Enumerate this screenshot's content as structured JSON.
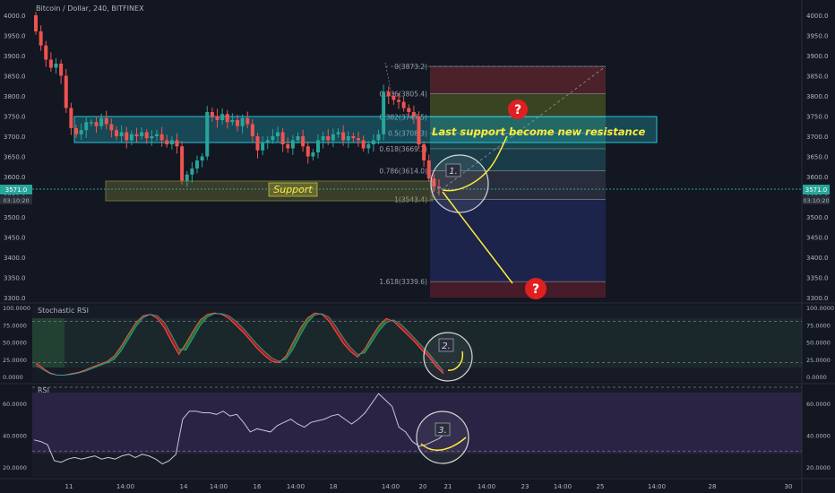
{
  "header": {
    "symbol_line": "Bitcoin / Dollar, 240, BITFINEX"
  },
  "price_panel": {
    "price_ticks": [
      "4000.0",
      "3950.0",
      "3900.0",
      "3850.0",
      "3800.0",
      "3750.0",
      "3700.0",
      "3650.0",
      "3600.0",
      "3550.0",
      "3500.0",
      "3450.0",
      "3400.0",
      "3350.0",
      "3300.0"
    ],
    "last_price_label": "3571.0",
    "countdown_label": "03:10:20"
  },
  "fib": {
    "levels": [
      {
        "label": "0(3873.2)",
        "value": 3873.2
      },
      {
        "label": "0.236(3805.4)",
        "value": 3805.4
      },
      {
        "label": "0.382(3747.5)",
        "value": 3747.5
      },
      {
        "label": "0.5(3708.3)",
        "value": 3708.3
      },
      {
        "label": "0.618(3669.1)",
        "value": 3669.1
      },
      {
        "label": "0.786(3614.0)",
        "value": 3614.0
      },
      {
        "label": "1(3543.4)",
        "value": 3543.4
      },
      {
        "label": "1.618(3339.6)",
        "value": 3339.6
      }
    ],
    "colors": [
      "#7a2b2f",
      "#5d6a23",
      "#2f6b4a",
      "#1f6a6a",
      "#1f5b68",
      "#3a4050",
      "#252f6e",
      "#5a2230"
    ]
  },
  "annotations": {
    "resistance_text": "Last support become new resistance",
    "support_text": "Support",
    "markers": [
      "1.",
      "2.",
      "3."
    ],
    "question_glyph": "?"
  },
  "stoch_panel": {
    "title": "Stochastic RSI",
    "ticks": [
      "100.0000",
      "75.0000",
      "50.0000",
      "25.0000",
      "0.0000"
    ]
  },
  "rsi_panel": {
    "title": "RSI",
    "ticks": [
      "60.0000",
      "40.0000",
      "20.0000"
    ]
  },
  "time_axis": {
    "labels": [
      "11",
      "14:00",
      "14",
      "14:00",
      "16",
      "14:00",
      "18",
      "14:00",
      "20",
      "21",
      "14:00",
      "23",
      "14:00",
      "25",
      "14:00",
      "28",
      "30"
    ]
  },
  "colors": {
    "up": "#26a69a",
    "down": "#ef5350",
    "background": "#131722",
    "annotation": "#ffeb3b",
    "zone": "#26c6da"
  },
  "chart_data": [
    {
      "type": "candlestick",
      "title": "Bitcoin / Dollar, 240, BITFINEX",
      "ylim": [
        3290,
        4040
      ],
      "closes": [
        3960,
        3925,
        3890,
        3870,
        3880,
        3850,
        3770,
        3720,
        3705,
        3715,
        3735,
        3735,
        3725,
        3745,
        3730,
        3715,
        3700,
        3710,
        3690,
        3705,
        3700,
        3710,
        3695,
        3700,
        3705,
        3690,
        3680,
        3690,
        3675,
        3590,
        3605,
        3620,
        3640,
        3650,
        3760,
        3750,
        3740,
        3755,
        3735,
        3740,
        3725,
        3745,
        3730,
        3700,
        3665,
        3685,
        3690,
        3700,
        3710,
        3680,
        3670,
        3690,
        3700,
        3675,
        3650,
        3660,
        3690,
        3700,
        3690,
        3705,
        3710,
        3690,
        3700,
        3695,
        3690,
        3670,
        3680,
        3690,
        3705,
        3810,
        3800,
        3790,
        3785,
        3770,
        3760,
        3750,
        3680,
        3640,
        3595,
        3575,
        3571
      ],
      "last_price": 3571.0
    },
    {
      "type": "line",
      "title": "Stochastic RSI",
      "ylim": [
        0,
        100
      ],
      "series": [
        {
          "values": [
            20,
            12,
            5,
            2,
            2,
            4,
            6,
            10,
            14,
            18,
            22,
            30,
            45,
            62,
            78,
            88,
            90,
            84,
            70,
            50,
            32,
            48,
            66,
            82,
            90,
            92,
            90,
            84,
            74,
            64,
            52,
            40,
            30,
            22,
            20,
            30,
            50,
            70,
            85,
            92,
            90,
            80,
            64,
            48,
            36,
            28,
            40,
            58,
            74,
            84,
            80,
            70,
            60,
            50,
            38,
            28,
            14,
            4
          ]
        },
        {
          "values": [
            16,
            10,
            4,
            2,
            2,
            3,
            5,
            8,
            12,
            16,
            20,
            25,
            38,
            55,
            72,
            85,
            90,
            88,
            78,
            60,
            40,
            38,
            56,
            74,
            86,
            91,
            91,
            88,
            80,
            70,
            58,
            46,
            36,
            27,
            22,
            25,
            40,
            60,
            78,
            89,
            91,
            86,
            72,
            56,
            42,
            32,
            34,
            50,
            66,
            78,
            82,
            76,
            66,
            55,
            44,
            33,
            20,
            8
          ]
        }
      ]
    },
    {
      "type": "line",
      "title": "RSI",
      "ylim": [
        20,
        70
      ],
      "series": [
        {
          "values": [
            37,
            36,
            34,
            24,
            23,
            25,
            26,
            25,
            26,
            27,
            25,
            26,
            25,
            27,
            28,
            26,
            28,
            27,
            25,
            22,
            24,
            28,
            50,
            55,
            55,
            54,
            54,
            53,
            55,
            52,
            53,
            48,
            42,
            44,
            43,
            42,
            46,
            48,
            50,
            47,
            45,
            48,
            49,
            50,
            52,
            53,
            50,
            47,
            50,
            54,
            60,
            66,
            62,
            58,
            45,
            42,
            36,
            33,
            34,
            36,
            38,
            42
          ]
        }
      ]
    }
  ]
}
